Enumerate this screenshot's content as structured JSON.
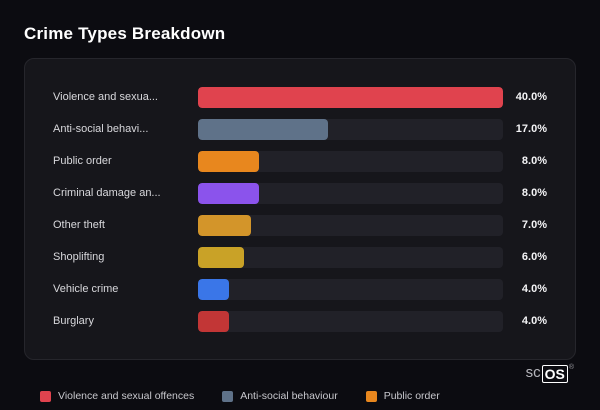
{
  "page": {
    "title": "Crime Types Breakdown"
  },
  "chart_data": {
    "type": "bar",
    "orientation": "horizontal",
    "title": "Crime Types Breakdown",
    "categories": [
      "Violence and sexua...",
      "Anti-social behavi...",
      "Public order",
      "Criminal damage an...",
      "Other theft",
      "Shoplifting",
      "Vehicle crime",
      "Burglary"
    ],
    "values": [
      40.0,
      17.0,
      8.0,
      8.0,
      7.0,
      6.0,
      4.0,
      4.0
    ],
    "value_labels": [
      "40.0%",
      "17.0%",
      "8.0%",
      "8.0%",
      "7.0%",
      "6.0%",
      "4.0%",
      "4.0%"
    ],
    "colors": [
      "#e0434e",
      "#5f7289",
      "#e8871e",
      "#8b53ec",
      "#d3952a",
      "#c9a227",
      "#3a76e8",
      "#c23636"
    ],
    "xlim": [
      0,
      40
    ],
    "track_color": "#212128",
    "grid": false,
    "legend_position": "bottom"
  },
  "legend": {
    "items": [
      {
        "label": "Violence and sexual offences",
        "color": "#e0434e"
      },
      {
        "label": "Anti-social behaviour",
        "color": "#5f7289"
      },
      {
        "label": "Public order",
        "color": "#e8871e"
      }
    ]
  },
  "brand": {
    "prefix": "sc",
    "suffix": "OS",
    "reg": "®"
  }
}
